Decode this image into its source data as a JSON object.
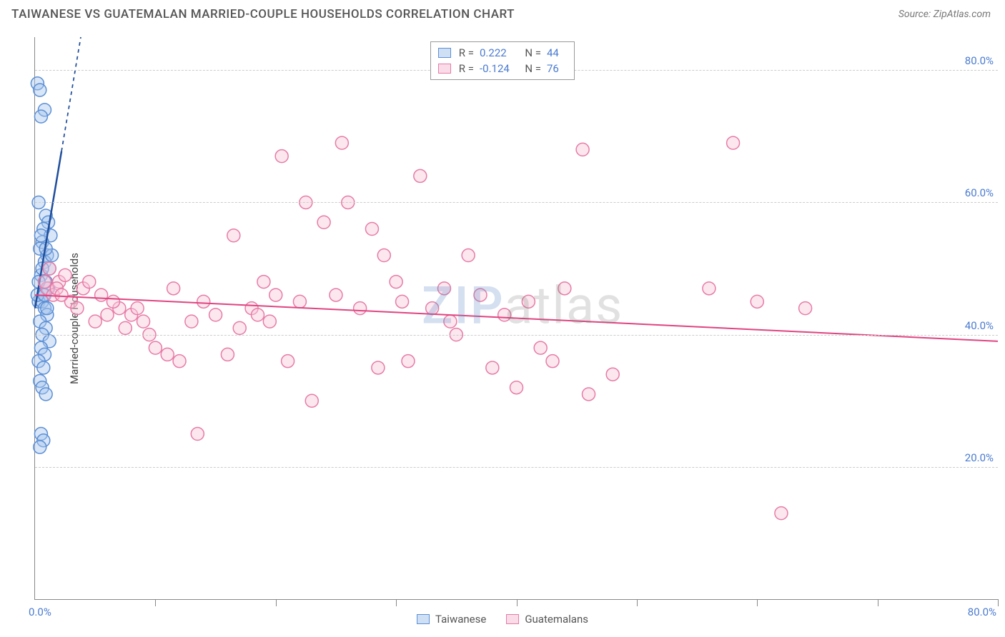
{
  "title": "TAIWANESE VS GUATEMALAN MARRIED-COUPLE HOUSEHOLDS CORRELATION CHART",
  "source_label": "Source: ZipAtlas.com",
  "ylabel": "Married-couple Households",
  "watermark": {
    "part1": "ZIP",
    "part2": "atlas"
  },
  "chart": {
    "type": "scatter",
    "xlim": [
      0,
      80
    ],
    "ylim": [
      0,
      85
    ],
    "x_tick_positions": [
      0,
      10,
      20,
      30,
      40,
      50,
      60,
      70,
      80
    ],
    "y_gridlines": [
      20,
      40,
      60,
      80
    ],
    "x_axis_label_left": "0.0%",
    "x_axis_label_right": "80.0%",
    "y_tick_labels": [
      {
        "v": 20,
        "t": "20.0%"
      },
      {
        "v": 40,
        "t": "40.0%"
      },
      {
        "v": 60,
        "t": "60.0%"
      },
      {
        "v": 80,
        "t": "80.0%"
      }
    ],
    "background_color": "#ffffff",
    "grid_color": "#cccccc",
    "marker_radius": 9,
    "marker_stroke_width": 1.5,
    "marker_fill_opacity": 0.18,
    "tick_label_color": "#4a7bd0",
    "axis_font_size": 15
  },
  "series": [
    {
      "key": "taiwanese",
      "label": "Taiwanese",
      "color_stroke": "#5b8fd6",
      "color_fill": "#a8c5ec",
      "swatch_border": "#5b8fd6",
      "swatch_fill": "#cfe0f5",
      "R_label": "R =",
      "R_value": "0.222",
      "N_label": "N =",
      "N_value": "44",
      "trend": {
        "x1": 0,
        "y1": 44,
        "x2": 3.8,
        "y2": 85,
        "dash_after_x": 2.2,
        "color": "#1f4e9c",
        "width": 2.5
      },
      "points": [
        [
          0.2,
          78
        ],
        [
          0.4,
          77
        ],
        [
          0.8,
          74
        ],
        [
          0.5,
          73
        ],
        [
          0.3,
          60
        ],
        [
          0.9,
          58
        ],
        [
          1.1,
          57
        ],
        [
          0.7,
          56
        ],
        [
          1.3,
          55
        ],
        [
          0.6,
          54
        ],
        [
          0.4,
          53
        ],
        [
          1.0,
          52
        ],
        [
          0.8,
          51
        ],
        [
          1.2,
          50
        ],
        [
          0.5,
          49
        ],
        [
          0.9,
          48
        ],
        [
          1.1,
          47
        ],
        [
          0.7,
          46
        ],
        [
          0.3,
          45
        ],
        [
          0.6,
          45
        ],
        [
          0.8,
          44
        ],
        [
          1.0,
          43
        ],
        [
          0.4,
          42
        ],
        [
          0.9,
          41
        ],
        [
          0.6,
          40
        ],
        [
          1.2,
          39
        ],
        [
          0.5,
          38
        ],
        [
          0.8,
          37
        ],
        [
          0.3,
          36
        ],
        [
          0.7,
          35
        ],
        [
          0.4,
          33
        ],
        [
          0.6,
          32
        ],
        [
          0.9,
          31
        ],
        [
          0.5,
          25
        ],
        [
          0.7,
          24
        ],
        [
          0.4,
          23
        ],
        [
          0.6,
          50
        ],
        [
          1.4,
          52
        ],
        [
          0.2,
          46
        ],
        [
          1.0,
          44
        ],
        [
          0.3,
          48
        ],
        [
          0.8,
          46
        ],
        [
          0.5,
          55
        ],
        [
          0.9,
          53
        ]
      ]
    },
    {
      "key": "guatemalans",
      "label": "Guatemalans",
      "color_stroke": "#e77ba5",
      "color_fill": "#f7c8da",
      "swatch_border": "#e77ba5",
      "swatch_fill": "#fadce8",
      "R_label": "R =",
      "R_value": "-0.124",
      "N_label": "N =",
      "N_value": "76",
      "trend": {
        "x1": 0,
        "y1": 46,
        "x2": 80,
        "y2": 39,
        "color": "#e0447f",
        "width": 2
      },
      "points": [
        [
          1,
          47
        ],
        [
          1.5,
          46
        ],
        [
          2,
          48
        ],
        [
          3,
          45
        ],
        [
          3.5,
          44
        ],
        [
          4,
          47
        ],
        [
          5,
          42
        ],
        [
          5.5,
          46
        ],
        [
          6,
          43
        ],
        [
          7,
          44
        ],
        [
          7.5,
          41
        ],
        [
          8,
          43
        ],
        [
          9,
          42
        ],
        [
          9.5,
          40
        ],
        [
          10,
          38
        ],
        [
          11,
          37
        ],
        [
          11.5,
          47
        ],
        [
          12,
          36
        ],
        [
          13,
          42
        ],
        [
          13.5,
          25
        ],
        [
          14,
          45
        ],
        [
          15,
          43
        ],
        [
          16,
          37
        ],
        [
          16.5,
          55
        ],
        [
          17,
          41
        ],
        [
          18,
          44
        ],
        [
          19,
          48
        ],
        [
          20,
          46
        ],
        [
          20.5,
          67
        ],
        [
          21,
          36
        ],
        [
          22,
          45
        ],
        [
          22.5,
          60
        ],
        [
          23,
          30
        ],
        [
          24,
          57
        ],
        [
          25,
          46
        ],
        [
          25.5,
          69
        ],
        [
          26,
          60
        ],
        [
          27,
          44
        ],
        [
          28,
          56
        ],
        [
          28.5,
          35
        ],
        [
          29,
          52
        ],
        [
          30,
          48
        ],
        [
          31,
          36
        ],
        [
          32,
          64
        ],
        [
          33,
          44
        ],
        [
          34,
          47
        ],
        [
          35,
          40
        ],
        [
          36,
          52
        ],
        [
          37,
          46
        ],
        [
          38,
          35
        ],
        [
          39,
          43
        ],
        [
          40,
          32
        ],
        [
          41,
          45
        ],
        [
          42,
          38
        ],
        [
          43,
          36
        ],
        [
          44,
          47
        ],
        [
          45.5,
          68
        ],
        [
          46,
          31
        ],
        [
          48,
          34
        ],
        [
          56,
          47
        ],
        [
          60,
          45
        ],
        [
          62,
          13
        ],
        [
          64,
          44
        ],
        [
          58,
          69
        ],
        [
          2.5,
          49
        ],
        [
          4.5,
          48
        ],
        [
          6.5,
          45
        ],
        [
          8.5,
          44
        ],
        [
          18.5,
          43
        ],
        [
          19.5,
          42
        ],
        [
          1.2,
          50
        ],
        [
          1.8,
          47
        ],
        [
          0.8,
          48
        ],
        [
          2.2,
          46
        ],
        [
          30.5,
          45
        ],
        [
          34.5,
          42
        ]
      ]
    }
  ],
  "legend": {
    "items": [
      {
        "series": "taiwanese"
      },
      {
        "series": "guatemalans"
      }
    ]
  }
}
